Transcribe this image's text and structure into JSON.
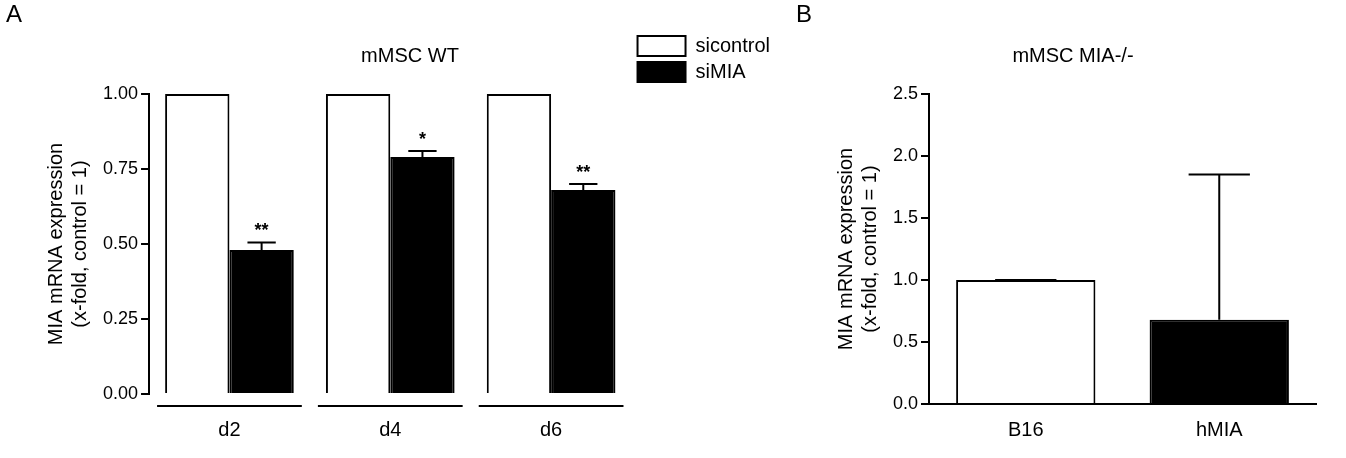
{
  "chart_data": [
    {
      "type": "bar",
      "panel_label": "A",
      "title": "mMSC WT",
      "y_label": [
        "MIA mRNA expression",
        "(x-fold, control = 1)"
      ],
      "categories": [
        "d2",
        "d4",
        "d6"
      ],
      "series": [
        {
          "name": "sicontrol",
          "color": "#ffffff",
          "values": [
            1,
            1,
            1
          ]
        },
        {
          "name": "siMIA",
          "color": "#000000",
          "values": [
            0.48,
            0.79,
            0.68
          ],
          "errors": [
            0.025,
            0.02,
            0.02
          ],
          "significance": [
            "**",
            "*",
            "**"
          ]
        }
      ],
      "ylim": [
        0,
        1
      ],
      "yticks": [
        {
          "value": 0,
          "label": "0.00"
        },
        {
          "value": 0.25,
          "label": "0.25"
        },
        {
          "value": 0.5,
          "label": "0.50"
        },
        {
          "value": 0.75,
          "label": "0.75"
        },
        {
          "value": 1,
          "label": "1.00"
        }
      ],
      "grid": false,
      "legend": "right"
    },
    {
      "type": "bar",
      "panel_label": "B",
      "title": "mMSC MIA-/-",
      "y_label": [
        "MIA mRNA expression",
        "(x-fold, control = 1)"
      ],
      "categories": [
        "B16",
        "hMIA"
      ],
      "values": [
        1,
        0.68
      ],
      "errors": [
        0,
        1.17
      ],
      "colors": [
        "#ffffff",
        "#000000"
      ],
      "ylim": [
        0,
        2.5
      ],
      "yticks": [
        {
          "value": 0,
          "label": "0.0"
        },
        {
          "value": 0.5,
          "label": "0.5"
        },
        {
          "value": 1,
          "label": "1.0"
        },
        {
          "value": 1.5,
          "label": "1.5"
        },
        {
          "value": 2,
          "label": "2.0"
        },
        {
          "value": 2.5,
          "label": "2.5"
        }
      ],
      "grid": false
    }
  ]
}
